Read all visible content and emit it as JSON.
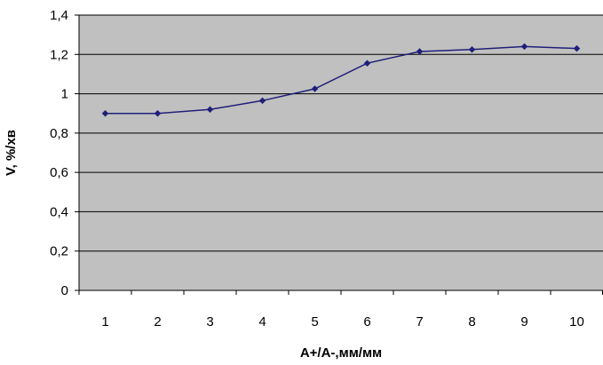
{
  "chart_data": {
    "type": "line",
    "x": [
      1,
      2,
      3,
      4,
      5,
      6,
      7,
      8,
      9,
      10
    ],
    "series": [
      {
        "values": [
          0.9,
          0.9,
          0.92,
          0.965,
          1.025,
          1.155,
          1.215,
          1.225,
          1.24,
          1.23
        ]
      }
    ],
    "xlabel": "A+/A-,мм/мм",
    "ylabel": "V, %/хв",
    "ylim": [
      0,
      1.4
    ],
    "x_tick_labels": [
      "1",
      "2",
      "3",
      "4",
      "5",
      "6",
      "7",
      "8",
      "9",
      "10"
    ],
    "y_ticks": [
      0,
      0.2,
      0.4,
      0.6,
      0.8,
      1,
      1.2,
      1.4
    ],
    "y_tick_labels": [
      "0",
      "0,2",
      "0,4",
      "0,6",
      "0,8",
      "1",
      "1,2",
      "1,4"
    ],
    "grid": true,
    "legend": "none"
  },
  "colors": {
    "plot_background": "#c0c0c0",
    "gridline": "#000000",
    "series_line": "#1f1f7a",
    "marker": "#1f1f7a"
  }
}
